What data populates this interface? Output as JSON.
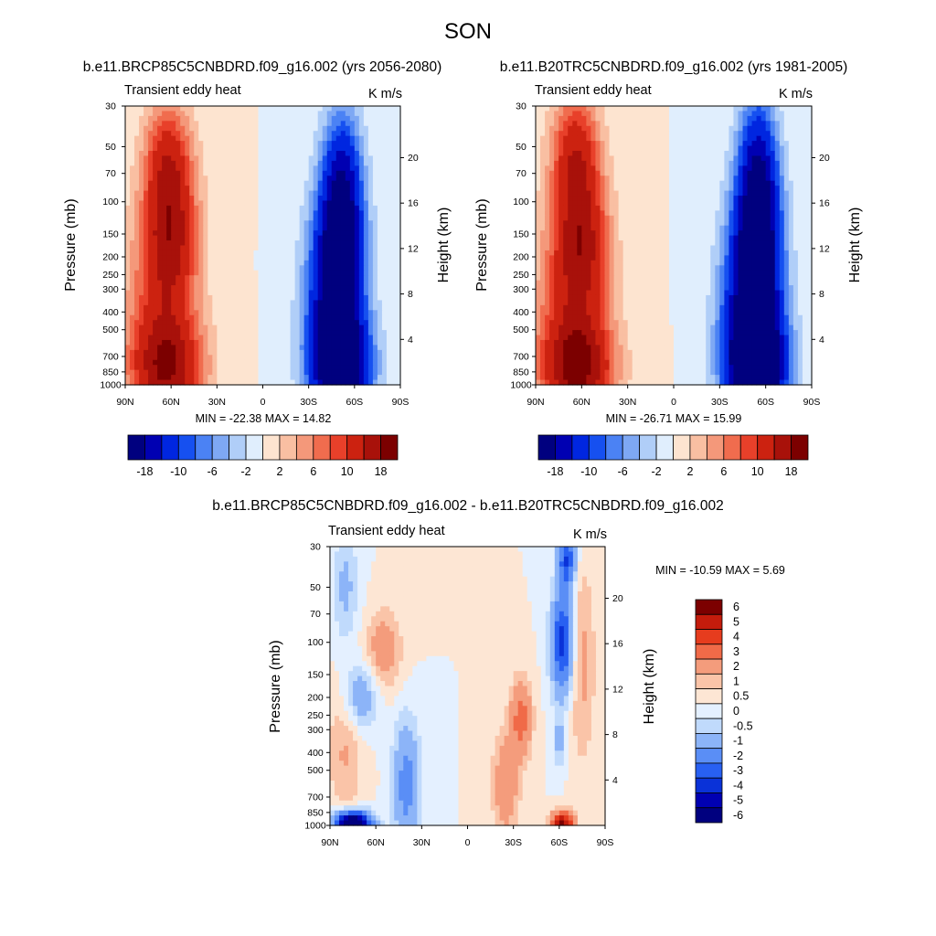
{
  "figure": {
    "title": "SON",
    "units": "K m/s",
    "pressure_axis_label": "Pressure (mb)",
    "height_axis_label": "Height (km)",
    "variable_label": "Transient eddy heat"
  },
  "colors": {
    "scale12": [
      "#00007f",
      "#0000b2",
      "#0026e0",
      "#1650f0",
      "#4b82f4",
      "#7ea8f4",
      "#b0cef8",
      "#e0eefd",
      "#fde4d0",
      "#f9bfa2",
      "#f4987a",
      "#f06c4e",
      "#e8402a",
      "#cc2210",
      "#a8110a",
      "#7c0000"
    ],
    "scale3": [
      "#00007f",
      "#0000b2",
      "#0a32d8",
      "#2860f2",
      "#5a8ef6",
      "#8cb4f8",
      "#c0dafc",
      "#e4f0ff",
      "#fde6d4",
      "#fac4a8",
      "#f49c7c",
      "#f06a48",
      "#e63c1e",
      "#c41c0c",
      "#7c0000"
    ]
  },
  "chart_data": [
    {
      "type": "heatmap",
      "name": "future",
      "subtitle": "b.e11.BRCP85C5CNBDRD.f09_g16.002 (yrs 2056-2080)",
      "left_label": "Transient eddy heat",
      "right_label": "K m/s",
      "x_ticks": [
        "90N",
        "60N",
        "30N",
        "0",
        "30S",
        "60S",
        "90S"
      ],
      "x_range": [
        90,
        -90
      ],
      "y_ticks": [
        "30",
        "50",
        "70",
        "100",
        "150",
        "200",
        "250",
        "300",
        "400",
        "500",
        "700",
        "850",
        "1000"
      ],
      "y_tick_values": [
        30,
        50,
        70,
        100,
        150,
        200,
        250,
        300,
        400,
        500,
        700,
        850,
        1000
      ],
      "y_range": [
        30,
        1000
      ],
      "height_ticks": [
        "20",
        "16",
        "12",
        "8",
        "4"
      ],
      "height_tick_values": [
        20,
        16,
        12,
        8,
        4
      ],
      "stats_text": "MIN = -22.38  MAX =  14.82",
      "colorbar_levels": [
        "-18",
        "-10",
        "-6",
        "-2",
        "2",
        "6",
        "10",
        "18"
      ],
      "features": {
        "pos": [
          {
            "lat": 62,
            "p": 60,
            "slat": 11,
            "sp": 0.55,
            "amp": 11
          },
          {
            "lat": 60,
            "p": 160,
            "slat": 12,
            "sp": 0.6,
            "amp": 12
          },
          {
            "lat": 62,
            "p": 820,
            "slat": 16,
            "sp": 0.45,
            "amp": 14.5
          },
          {
            "lat": 68,
            "p": 400,
            "slat": 17,
            "sp": 0.9,
            "amp": 7
          }
        ],
        "neg": [
          {
            "lat": -52,
            "p": 80,
            "slat": 9,
            "sp": 0.7,
            "amp": 13
          },
          {
            "lat": -50,
            "p": 200,
            "slat": 11,
            "sp": 0.7,
            "amp": 15
          },
          {
            "lat": -52,
            "p": 800,
            "slat": 13,
            "sp": 0.5,
            "amp": 21
          },
          {
            "lat": -45,
            "p": 450,
            "slat": 13,
            "sp": 0.9,
            "amp": 11
          }
        ]
      }
    },
    {
      "type": "heatmap",
      "name": "historical",
      "subtitle": "b.e11.B20TRC5CNBDRD.f09_g16.002 (yrs 1981-2005)",
      "left_label": "Transient eddy heat",
      "right_label": "K m/s",
      "x_ticks": [
        "90N",
        "60N",
        "30N",
        "0",
        "30S",
        "60S",
        "90S"
      ],
      "x_range": [
        90,
        -90
      ],
      "y_ticks": [
        "30",
        "50",
        "70",
        "100",
        "150",
        "200",
        "250",
        "300",
        "400",
        "500",
        "700",
        "850",
        "1000"
      ],
      "y_tick_values": [
        30,
        50,
        70,
        100,
        150,
        200,
        250,
        300,
        400,
        500,
        700,
        850,
        1000
      ],
      "y_range": [
        30,
        1000
      ],
      "height_ticks": [
        "20",
        "16",
        "12",
        "8",
        "4"
      ],
      "height_tick_values": [
        20,
        16,
        12,
        8,
        4
      ],
      "stats_text": "MIN = -26.71  MAX =  15.99",
      "colorbar_levels": [
        "-18",
        "-10",
        "-6",
        "-2",
        "2",
        "6",
        "10",
        "18"
      ],
      "features": {
        "pos": [
          {
            "lat": 64,
            "p": 55,
            "slat": 11,
            "sp": 0.55,
            "amp": 12
          },
          {
            "lat": 60,
            "p": 170,
            "slat": 12,
            "sp": 0.6,
            "amp": 12.5
          },
          {
            "lat": 62,
            "p": 820,
            "slat": 16,
            "sp": 0.45,
            "amp": 15.5
          },
          {
            "lat": 68,
            "p": 400,
            "slat": 17,
            "sp": 0.9,
            "amp": 7.5
          }
        ],
        "neg": [
          {
            "lat": -55,
            "p": 70,
            "slat": 9,
            "sp": 0.7,
            "amp": 15
          },
          {
            "lat": -55,
            "p": 200,
            "slat": 11,
            "sp": 0.7,
            "amp": 17
          },
          {
            "lat": -55,
            "p": 800,
            "slat": 13,
            "sp": 0.5,
            "amp": 25
          },
          {
            "lat": -48,
            "p": 450,
            "slat": 13,
            "sp": 0.9,
            "amp": 12
          }
        ]
      }
    },
    {
      "type": "heatmap",
      "name": "difference",
      "subtitle": "b.e11.BRCP85C5CNBDRD.f09_g16.002 - b.e11.B20TRC5CNBDRD.f09_g16.002",
      "left_label": "Transient eddy heat",
      "right_label": "K m/s",
      "x_ticks": [
        "90N",
        "60N",
        "30N",
        "0",
        "30S",
        "60S",
        "90S"
      ],
      "x_range": [
        90,
        -90
      ],
      "y_ticks": [
        "30",
        "50",
        "70",
        "100",
        "150",
        "200",
        "250",
        "300",
        "400",
        "500",
        "700",
        "850",
        "1000"
      ],
      "y_tick_values": [
        30,
        50,
        70,
        100,
        150,
        200,
        250,
        300,
        400,
        500,
        700,
        850,
        1000
      ],
      "y_range": [
        30,
        1000
      ],
      "height_ticks": [
        "20",
        "16",
        "12",
        "8",
        "4"
      ],
      "height_tick_values": [
        20,
        16,
        12,
        8,
        4
      ],
      "stats_text": "MIN = -10.59  MAX =   5.69",
      "colorbar_levels": [
        "6",
        "5",
        "4",
        "3",
        "2",
        "1",
        "0.5",
        "0",
        "-0.5",
        "-1",
        "-2",
        "-3",
        "-4",
        "-5",
        "-6"
      ],
      "features": {
        "pos": [
          {
            "lat": 55,
            "p": 110,
            "slat": 8,
            "sp": 0.35,
            "amp": 1.6
          },
          {
            "lat": -35,
            "p": 260,
            "slat": 5,
            "sp": 0.35,
            "amp": 2.4
          },
          {
            "lat": -25,
            "p": 600,
            "slat": 6,
            "sp": 0.45,
            "amp": 1.8
          },
          {
            "lat": 80,
            "p": 380,
            "slat": 8,
            "sp": 0.6,
            "amp": 1.1
          },
          {
            "lat": -62,
            "p": 970,
            "slat": 5,
            "sp": 0.1,
            "amp": 5.5
          },
          {
            "lat": -75,
            "p": 130,
            "slat": 6,
            "sp": 0.9,
            "amp": 1.2
          }
        ],
        "neg": [
          {
            "lat": -62,
            "p": 100,
            "slat": 5,
            "sp": 0.45,
            "amp": 4.5
          },
          {
            "lat": -65,
            "p": 35,
            "slat": 4,
            "sp": 0.25,
            "amp": 4
          },
          {
            "lat": 75,
            "p": 975,
            "slat": 8,
            "sp": 0.1,
            "amp": 9
          },
          {
            "lat": 40,
            "p": 600,
            "slat": 6,
            "sp": 0.55,
            "amp": 2.5
          },
          {
            "lat": 70,
            "p": 200,
            "slat": 8,
            "sp": 0.3,
            "amp": 1.8
          },
          {
            "lat": 80,
            "p": 50,
            "slat": 6,
            "sp": 0.5,
            "amp": 1.2
          },
          {
            "lat": -60,
            "p": 350,
            "slat": 3,
            "sp": 0.25,
            "amp": 1.2
          }
        ]
      }
    }
  ]
}
